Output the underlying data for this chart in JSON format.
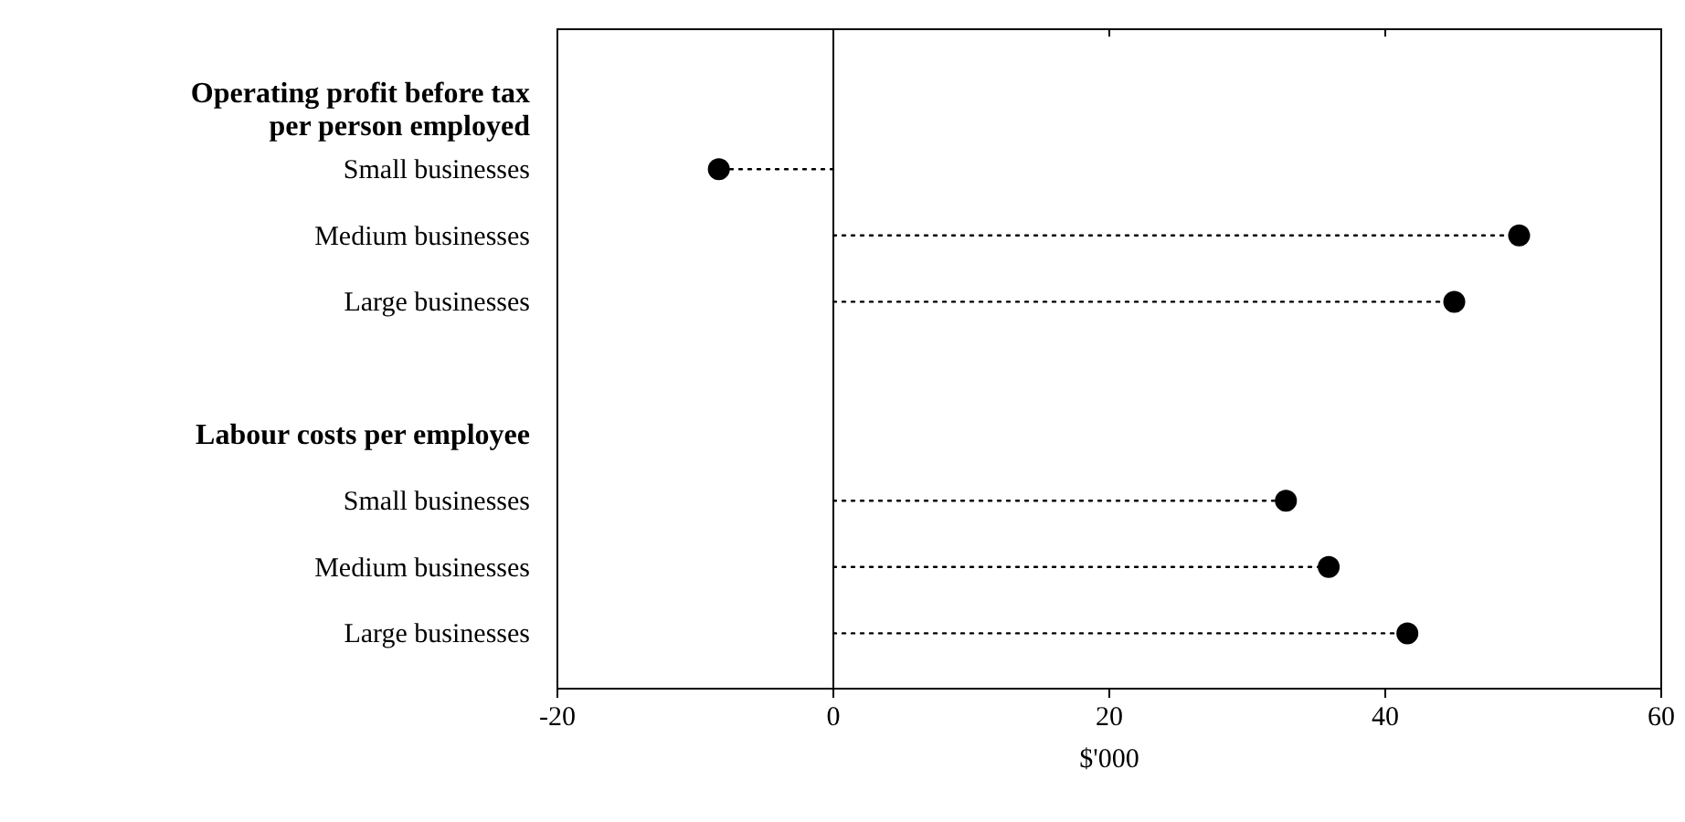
{
  "chart_data": {
    "type": "lollipop",
    "orientation": "horizontal",
    "xlabel": "$'000",
    "categories": [
      "Operating profit before tax per person employed",
      "Small businesses",
      "Medium businesses",
      "Large businesses",
      "Labour costs per employee",
      "Small businesses",
      "Medium businesses",
      "Large businesses"
    ],
    "values": [
      null,
      -8.3,
      49.7,
      45.0,
      null,
      32.8,
      35.9,
      41.6
    ],
    "color": "#000000",
    "marker": "circle",
    "line_style": "dotted",
    "xlim": [
      -20,
      60
    ],
    "xticks": [
      -20,
      0,
      20,
      40,
      60
    ],
    "ref_lines": [
      {
        "axis": "x",
        "value": 0,
        "color": "#000000",
        "line_style": "solid"
      }
    ],
    "grid": false
  }
}
